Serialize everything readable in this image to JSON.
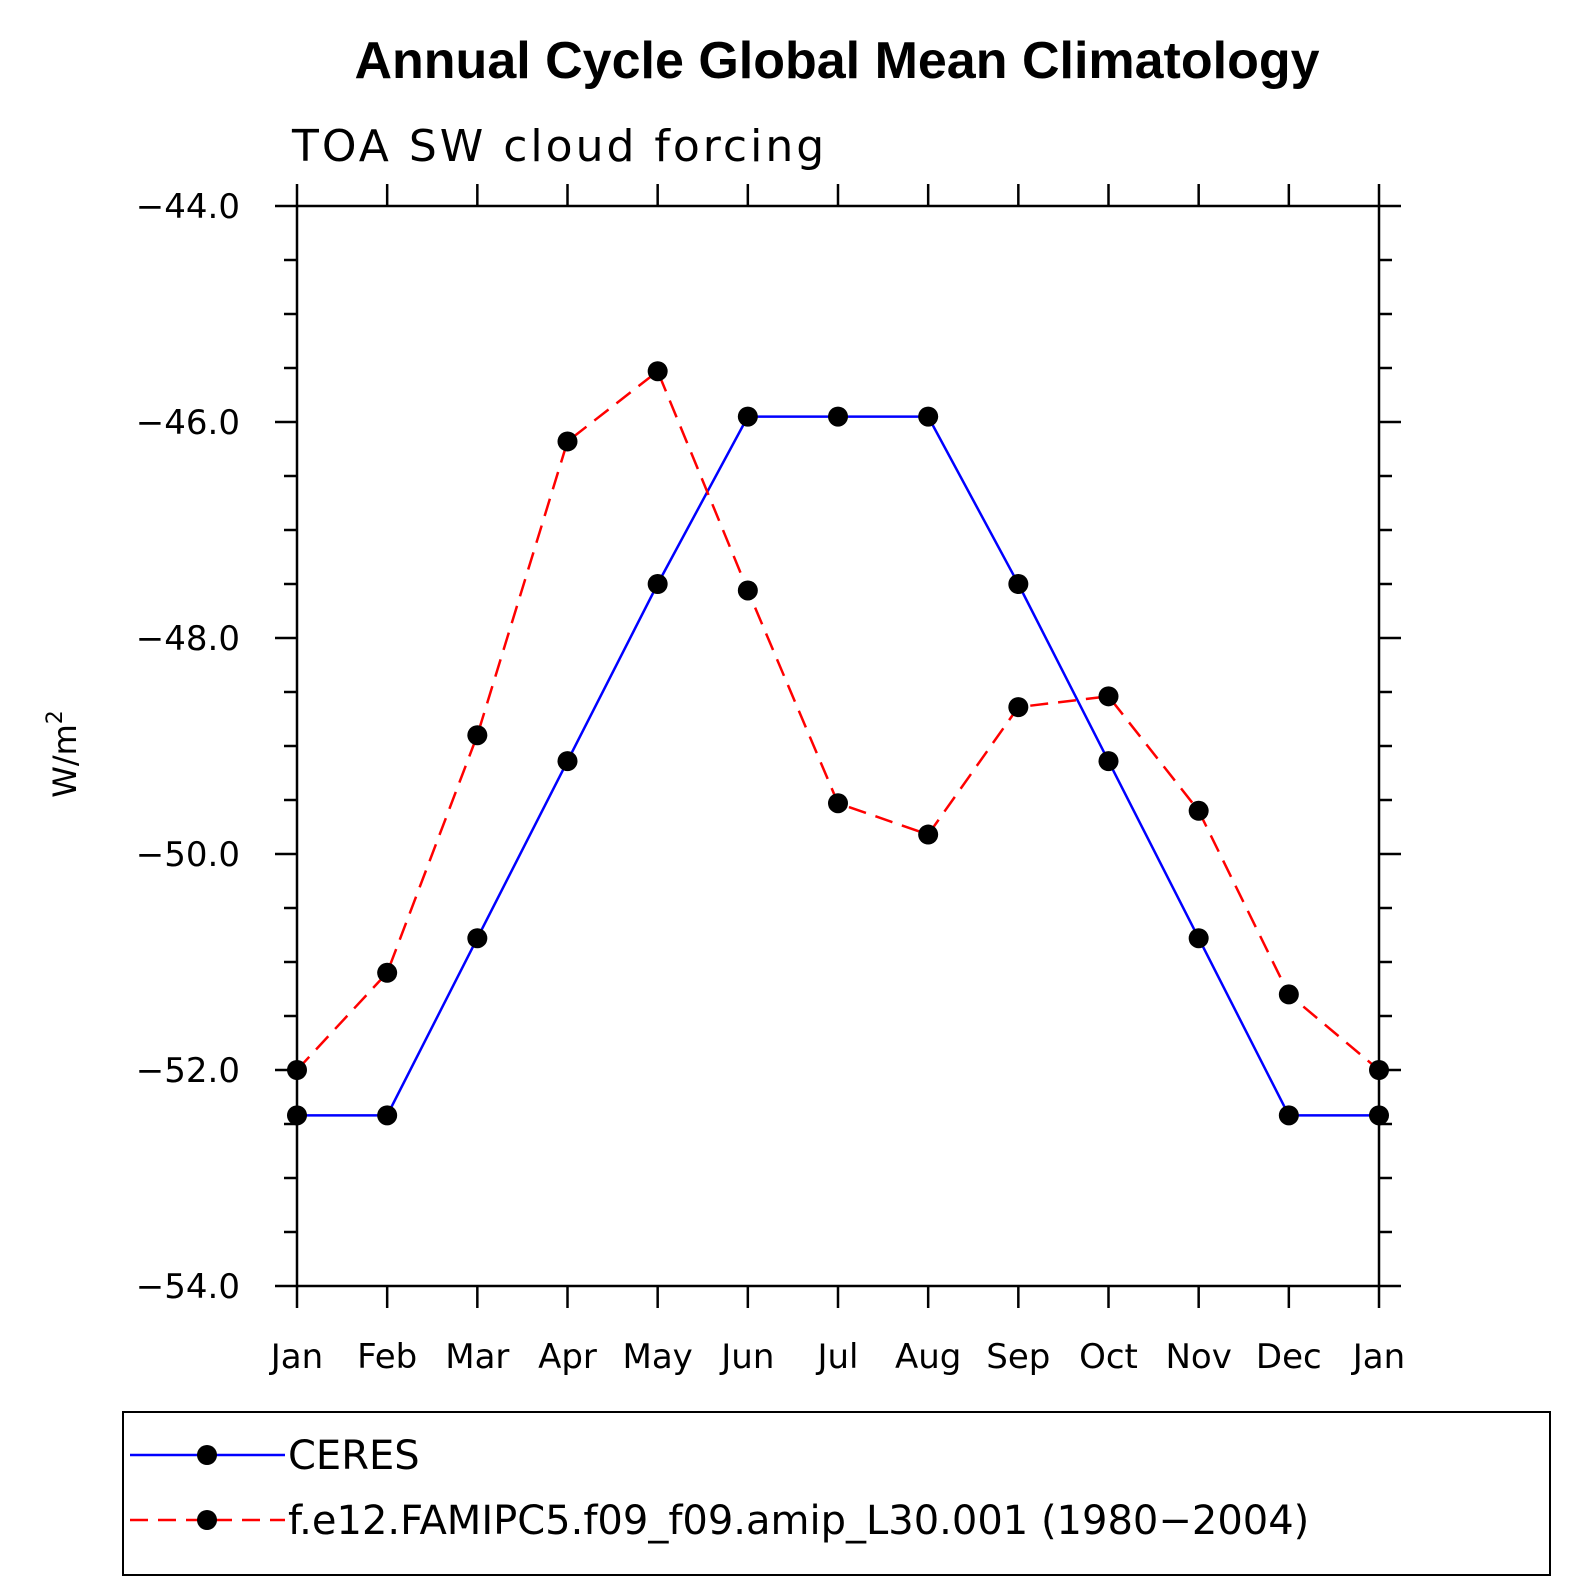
{
  "chart_data": {
    "type": "line",
    "title": "Annual Cycle Global Mean Climatology",
    "subtitle": "TOA SW cloud forcing",
    "ylabel": "W/m",
    "ylabel_superscript": "2",
    "ylim": [
      -54.0,
      -44.0
    ],
    "yticks": [
      -44.0,
      -46.0,
      -48.0,
      -50.0,
      -52.0,
      -54.0
    ],
    "ytick_labels": [
      "−44.0",
      "−46.0",
      "−48.0",
      "−50.0",
      "−52.0",
      "−54.0"
    ],
    "categories": [
      "Jan",
      "Feb",
      "Mar",
      "Apr",
      "May",
      "Jun",
      "Jul",
      "Aug",
      "Sep",
      "Oct",
      "Nov",
      "Dec",
      "Jan"
    ],
    "series": [
      {
        "name": "CERES",
        "color": "#0000ff",
        "dash": "solid",
        "marker_color": "#000000",
        "values": [
          -52.42,
          -52.42,
          -50.78,
          -49.14,
          -47.5,
          -45.95,
          -45.95,
          -45.95,
          -47.5,
          -49.14,
          -50.78,
          -52.42,
          -52.42
        ]
      },
      {
        "name": "f.e12.FAMIPC5.f09_f09.amip_L30.001 (1980−2004)",
        "color": "#ff0000",
        "dash": "dashed",
        "marker_color": "#000000",
        "values": [
          -52.0,
          -51.1,
          -48.9,
          -46.18,
          -45.53,
          -47.56,
          -49.53,
          -49.82,
          -48.64,
          -48.54,
          -49.6,
          -51.3,
          -52.0
        ]
      }
    ],
    "legend_position": "bottom"
  }
}
